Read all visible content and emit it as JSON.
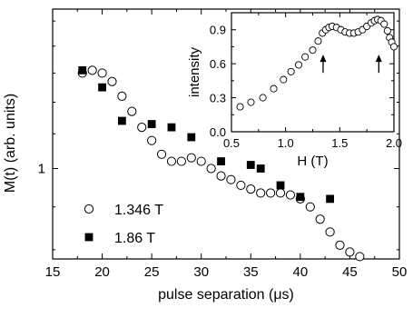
{
  "chart_data": [
    {
      "type": "scatter",
      "xlabel": "pulse separation (μs)",
      "ylabel": "M(t) (arb. units)",
      "xlim": [
        15,
        50
      ],
      "ylim": [
        0.78,
        1.55
      ],
      "yscale": "log",
      "xticks": [
        "15",
        "20",
        "25",
        "30",
        "35",
        "40",
        "45",
        "50"
      ],
      "yticks": [
        "1"
      ],
      "legend_position": "bottom-left",
      "series": [
        {
          "name": "1.346 T",
          "marker": "open-circle",
          "points": [
            [
              18,
              1.3
            ],
            [
              19,
              1.31
            ],
            [
              20,
              1.3
            ],
            [
              21,
              1.27
            ],
            [
              22,
              1.22
            ],
            [
              23,
              1.17
            ],
            [
              24,
              1.12
            ],
            [
              25,
              1.08
            ],
            [
              26,
              1.04
            ],
            [
              27,
              1.02
            ],
            [
              28,
              1.02
            ],
            [
              29,
              1.03
            ],
            [
              30,
              1.02
            ],
            [
              31,
              1.0
            ],
            [
              32,
              0.98
            ],
            [
              33,
              0.97
            ],
            [
              34,
              0.955
            ],
            [
              35,
              0.945
            ],
            [
              36,
              0.935
            ],
            [
              37,
              0.935
            ],
            [
              38,
              0.935
            ],
            [
              39,
              0.93
            ],
            [
              40,
              0.92
            ],
            [
              41,
              0.9
            ],
            [
              42,
              0.87
            ],
            [
              43,
              0.84
            ],
            [
              44,
              0.81
            ],
            [
              45,
              0.795
            ],
            [
              46,
              0.785
            ]
          ]
        },
        {
          "name": "1.86 T",
          "marker": "filled-square",
          "points": [
            [
              18,
              1.31
            ],
            [
              20,
              1.25
            ],
            [
              22,
              1.14
            ],
            [
              25,
              1.13
            ],
            [
              27,
              1.12
            ],
            [
              29,
              1.09
            ],
            [
              32,
              1.02
            ],
            [
              35,
              1.01
            ],
            [
              36,
              1.0
            ],
            [
              38,
              0.955
            ],
            [
              40,
              0.925
            ],
            [
              43,
              0.92
            ]
          ]
        }
      ]
    },
    {
      "type": "scatter",
      "xlabel": "H (T)",
      "ylabel": "intensity",
      "xlim": [
        0.5,
        2.0
      ],
      "ylim": [
        0.0,
        1.05
      ],
      "xticks": [
        "0.5",
        "1.0",
        "1.5",
        "2.0"
      ],
      "yticks": [
        "0.0",
        "0.3",
        "0.6",
        "0.9"
      ],
      "annotations": [
        {
          "type": "arrow",
          "x": 1.346,
          "y": 0.68
        },
        {
          "type": "arrow",
          "x": 1.86,
          "y": 0.68
        }
      ],
      "series": [
        {
          "marker": "open-circle",
          "points": [
            [
              0.58,
              0.22
            ],
            [
              0.68,
              0.26
            ],
            [
              0.79,
              0.3
            ],
            [
              0.89,
              0.38
            ],
            [
              0.98,
              0.46
            ],
            [
              1.05,
              0.53
            ],
            [
              1.12,
              0.59
            ],
            [
              1.18,
              0.66
            ],
            [
              1.25,
              0.72
            ],
            [
              1.3,
              0.8
            ],
            [
              1.34,
              0.87
            ],
            [
              1.37,
              0.9
            ],
            [
              1.4,
              0.92
            ],
            [
              1.43,
              0.93
            ],
            [
              1.47,
              0.92
            ],
            [
              1.51,
              0.9
            ],
            [
              1.55,
              0.88
            ],
            [
              1.59,
              0.87
            ],
            [
              1.63,
              0.87
            ],
            [
              1.67,
              0.88
            ],
            [
              1.71,
              0.9
            ],
            [
              1.75,
              0.93
            ],
            [
              1.79,
              0.96
            ],
            [
              1.82,
              0.98
            ],
            [
              1.85,
              0.99
            ],
            [
              1.88,
              0.98
            ],
            [
              1.91,
              0.95
            ],
            [
              1.94,
              0.89
            ],
            [
              1.96,
              0.83
            ],
            [
              1.98,
              0.79
            ],
            [
              2.0,
              0.75
            ]
          ]
        }
      ]
    }
  ]
}
